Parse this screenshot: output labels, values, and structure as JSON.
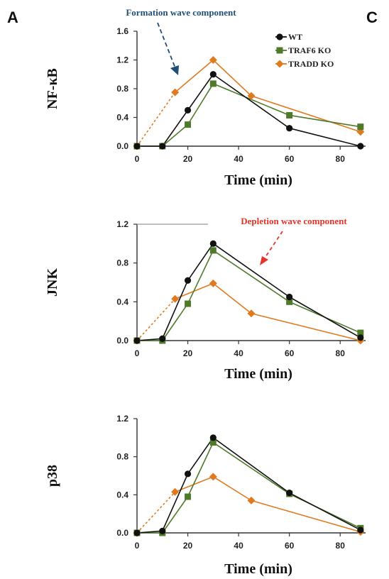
{
  "panel_labels": {
    "left": "A",
    "right": "C"
  },
  "colors": {
    "WT": "#111111",
    "TRAF6 KO": "#4e7a2a",
    "TRADD KO": "#e07a1f",
    "formation": "#1f4e79",
    "depletion": "#e8332a"
  },
  "annotations": {
    "formation": "Formation wave component",
    "depletion": "Depletion wave component"
  },
  "chart_data": [
    {
      "type": "line",
      "ylabel": "NF-κB",
      "xlabel": "Time (min)",
      "xlim": [
        0,
        90
      ],
      "ylim": [
        0,
        1.6
      ],
      "xticks": [
        0,
        20,
        40,
        60,
        80
      ],
      "yticks": [
        "0.0",
        "0.4",
        "0.8",
        "1.2",
        "1.6"
      ],
      "legend": "top-right",
      "series": [
        {
          "name": "WT",
          "x": [
            0,
            10,
            20,
            30,
            60,
            88
          ],
          "y": [
            0,
            0,
            0.5,
            1.0,
            0.25,
            0
          ]
        },
        {
          "name": "TRAF6 KO",
          "x": [
            0,
            10,
            20,
            30,
            60,
            88
          ],
          "y": [
            0,
            0,
            0.3,
            0.87,
            0.43,
            0.27
          ]
        },
        {
          "name": "TRADD KO",
          "x": [
            0,
            15,
            30,
            45,
            88
          ],
          "y": [
            0,
            0.75,
            1.2,
            0.7,
            0.2
          ],
          "dashed_until": 1
        }
      ]
    },
    {
      "type": "line",
      "ylabel": "JNK",
      "xlabel": "Time (min)",
      "xlim": [
        0,
        90
      ],
      "ylim": [
        0,
        1.2
      ],
      "xticks": [
        0,
        20,
        40,
        60,
        80
      ],
      "yticks": [
        "0.0",
        "0.4",
        "0.8",
        "1.2"
      ],
      "series": [
        {
          "name": "WT",
          "x": [
            0,
            10,
            20,
            30,
            60,
            88
          ],
          "y": [
            0,
            0.02,
            0.62,
            1.0,
            0.45,
            0.03
          ]
        },
        {
          "name": "TRAF6 KO",
          "x": [
            0,
            10,
            20,
            30,
            60,
            88
          ],
          "y": [
            0,
            0,
            0.38,
            0.93,
            0.4,
            0.08
          ]
        },
        {
          "name": "TRADD KO",
          "x": [
            0,
            15,
            30,
            45,
            88
          ],
          "y": [
            0,
            0.43,
            0.59,
            0.28,
            0.0
          ],
          "dashed_until": 1
        }
      ]
    },
    {
      "type": "line",
      "ylabel": "p38",
      "xlabel": "Time (min)",
      "xlim": [
        0,
        90
      ],
      "ylim": [
        0,
        1.2
      ],
      "xticks": [
        0,
        20,
        40,
        60,
        80
      ],
      "yticks": [
        "0.0",
        "0.4",
        "0.8",
        "1.2"
      ],
      "series": [
        {
          "name": "WT",
          "x": [
            0,
            10,
            20,
            30,
            60,
            88
          ],
          "y": [
            0,
            0.02,
            0.62,
            1.0,
            0.42,
            0.03
          ]
        },
        {
          "name": "TRAF6 KO",
          "x": [
            0,
            10,
            20,
            30,
            60,
            88
          ],
          "y": [
            0,
            0,
            0.38,
            0.95,
            0.41,
            0.05
          ]
        },
        {
          "name": "TRADD KO",
          "x": [
            0,
            15,
            30,
            45,
            88
          ],
          "y": [
            0,
            0.43,
            0.59,
            0.34,
            0.01
          ],
          "dashed_until": 1
        }
      ]
    }
  ]
}
